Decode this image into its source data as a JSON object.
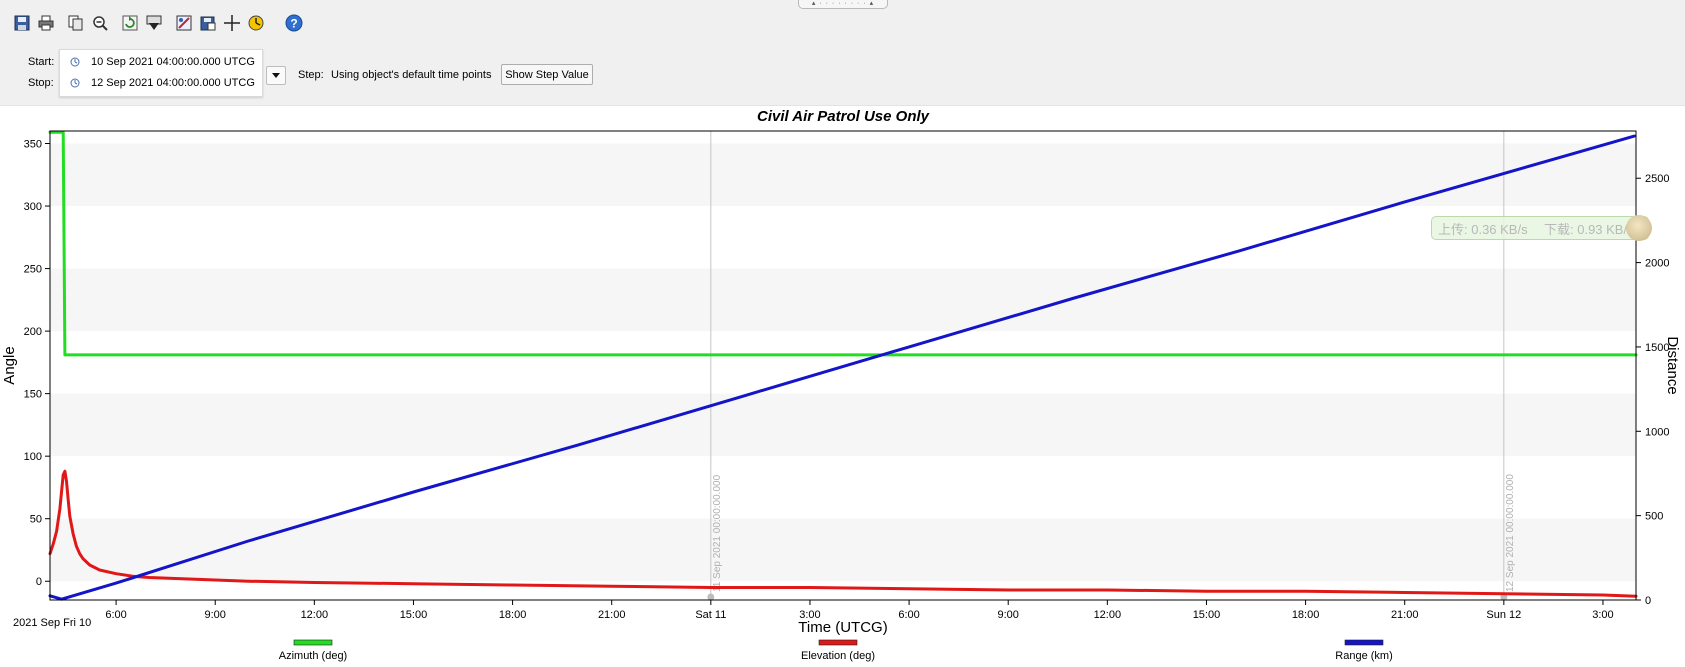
{
  "toolbar": {
    "buttons": [
      {
        "name": "save-icon"
      },
      {
        "name": "print-icon"
      },
      {
        "name": "copy-icon"
      },
      {
        "name": "zoom-out-icon"
      },
      {
        "name": "refresh-icon"
      },
      {
        "name": "export-icon"
      },
      {
        "name": "properties-icon"
      },
      {
        "name": "save-as-icon"
      },
      {
        "name": "crosshair-icon"
      },
      {
        "name": "animate-icon"
      },
      {
        "name": "help-icon"
      }
    ]
  },
  "time_controls": {
    "start_label": "Start:",
    "start_value": "10 Sep 2021 04:00:00.000 UTCG",
    "stop_label": "Stop:",
    "stop_value": "12 Sep 2021 04:00:00.000 UTCG",
    "step_label": "Step:",
    "step_value": "Using object's default time points",
    "show_step_button": "Show Step Value"
  },
  "net_monitor": {
    "upload_text": "上传: 0.36 KB/s",
    "download_text": "下载: 0.93 KB/s"
  },
  "chart_data": {
    "type": "line",
    "title": "Civil Air Patrol Use Only",
    "xlabel": "Time (UTCG)",
    "ylabel_left": "Angle",
    "ylabel_right": "Distance",
    "date_label": "2021 Sep Fri 10",
    "x_unit": "hours",
    "xlim": [
      4.0,
      52.0
    ],
    "ylim_left": [
      -15,
      360
    ],
    "ylim_right": [
      0,
      2780
    ],
    "x_ticks": [
      {
        "x": 6,
        "label": "6:00"
      },
      {
        "x": 9,
        "label": "9:00"
      },
      {
        "x": 12,
        "label": "12:00"
      },
      {
        "x": 15,
        "label": "15:00"
      },
      {
        "x": 18,
        "label": "18:00"
      },
      {
        "x": 21,
        "label": "21:00"
      },
      {
        "x": 24,
        "label": "Sat 11"
      },
      {
        "x": 27,
        "label": "3:00"
      },
      {
        "x": 30,
        "label": "6:00"
      },
      {
        "x": 33,
        "label": "9:00"
      },
      {
        "x": 36,
        "label": "12:00"
      },
      {
        "x": 39,
        "label": "15:00"
      },
      {
        "x": 42,
        "label": "18:00"
      },
      {
        "x": 45,
        "label": "21:00"
      },
      {
        "x": 48,
        "label": "Sun 12"
      },
      {
        "x": 51,
        "label": "3:00"
      }
    ],
    "y_left_ticks": [
      0,
      50,
      100,
      150,
      200,
      250,
      300,
      350
    ],
    "y_right_ticks": [
      0,
      500,
      1000,
      1500,
      2000,
      2500
    ],
    "day_markers": [
      {
        "x": 24,
        "label": "11 Sep 2021 00:00:00.000"
      },
      {
        "x": 48,
        "label": "12 Sep 2021 00:00:00.000"
      }
    ],
    "grid_bands": true,
    "legend_position": "bottom",
    "series": [
      {
        "name": "Azimuth (deg)",
        "axis": "left",
        "color": "#22dd22",
        "x": [
          4.0,
          4.4,
          4.45,
          4.5,
          52.0
        ],
        "y": [
          359,
          359,
          181,
          181,
          181
        ]
      },
      {
        "name": "Elevation (deg)",
        "axis": "left",
        "color": "#e01818",
        "x": [
          4.0,
          4.1,
          4.2,
          4.3,
          4.35,
          4.4,
          4.45,
          4.5,
          4.55,
          4.6,
          4.7,
          4.8,
          4.9,
          5.0,
          5.2,
          5.5,
          6.0,
          6.5,
          7.0,
          8.0,
          9.0,
          10.0,
          12.0,
          15.0,
          18.0,
          21.0,
          24.0,
          27.0,
          30.0,
          33.0,
          36.0,
          39.0,
          42.0,
          45.0,
          48.0,
          51.0,
          52.0
        ],
        "y": [
          22,
          30,
          40,
          58,
          72,
          85,
          88,
          80,
          65,
          52,
          38,
          28,
          22,
          18,
          13,
          9,
          6,
          4,
          3,
          2,
          1,
          0,
          -1,
          -2,
          -3,
          -4,
          -5,
          -5,
          -6,
          -7,
          -7,
          -8,
          -8,
          -9,
          -10,
          -11,
          -12
        ]
      },
      {
        "name": "Range (km)",
        "axis": "right",
        "color": "#1414c8",
        "x": [
          4.0,
          4.35,
          6.0,
          10.0,
          15.0,
          20.0,
          25.0,
          30.0,
          35.0,
          40.0,
          45.0,
          50.0,
          51.95
        ],
        "y": [
          25,
          5,
          100,
          350,
          640,
          920,
          1210,
          1500,
          1790,
          2070,
          2360,
          2640,
          2750
        ]
      }
    ]
  }
}
